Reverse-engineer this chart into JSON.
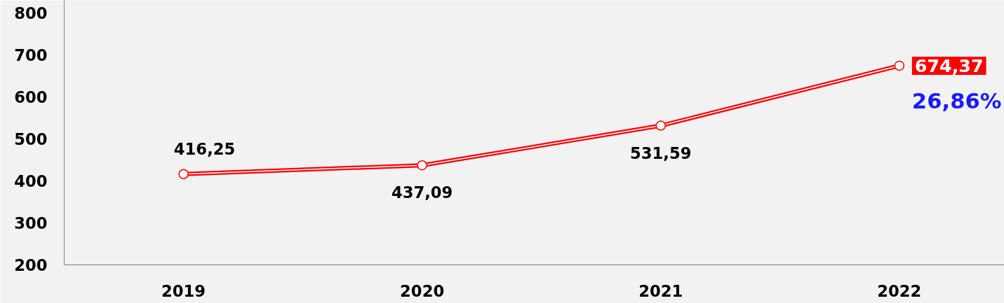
{
  "chart_data": {
    "type": "line",
    "categories": [
      "2019",
      "2020",
      "2021",
      "2022"
    ],
    "series": [
      {
        "color": "#ff0000",
        "values": [
          416.25,
          437.09,
          531.59,
          674.37
        ],
        "value_labels": [
          "416,25",
          "437,09",
          "531,59",
          "674,37"
        ]
      }
    ],
    "ylim": [
      200,
      830
    ],
    "yticks": [
      200,
      300,
      400,
      500,
      600,
      700,
      800
    ],
    "annotations": [
      "26,86%"
    ],
    "marker": "circle",
    "line_style": "solid",
    "grid": false
  }
}
